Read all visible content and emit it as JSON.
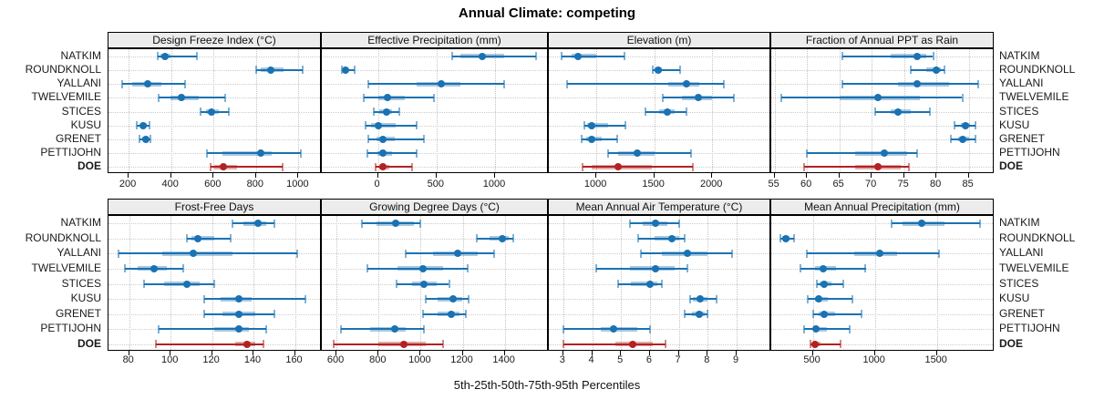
{
  "title": "Annual Climate: competing",
  "xlabel": "5th-25th-50th-75th-95th Percentiles",
  "sites": [
    "NATKIM",
    "ROUNDKNOLL",
    "YALLANI",
    "TWELVEMILE",
    "STICES",
    "KUSU",
    "GRENET",
    "PETTIJOHN",
    "DOE"
  ],
  "highlight_site": "DOE",
  "percentile_labels": [
    "5th",
    "25th",
    "50th",
    "75th",
    "95th"
  ],
  "colors": {
    "series_blue": "#1a72b2",
    "series_blue_band": "rgba(26,114,178,0.38)",
    "series_blue_cap": "rgba(26,114,178,0.55)",
    "highlight_red": "#b22222",
    "highlight_red_band": "rgba(178,34,34,0.38)",
    "highlight_red_cap": "rgba(178,34,34,0.55)",
    "strip_background": "#ececec",
    "grid": "#c9c9c9",
    "panel_border": "#000000"
  },
  "chart_data": {
    "type": "dotplot-intervals",
    "layout": "2 rows x 4 columns",
    "legend_position": "none",
    "grid": "dotted both axes",
    "note": "Each row shows 5th-25th-50th-75th-95th percentiles: whisker = 5th-95th, band = 25th-75th, dot = median",
    "panels": [
      {
        "title": "Design Freeze Index (°C)",
        "row": 0,
        "col": 0,
        "xlim": [
          105,
          1110
        ],
        "ticks": [
          200,
          400,
          600,
          800,
          1000
        ],
        "values": [
          [
            335,
            350,
            370,
            395,
            520
          ],
          [
            800,
            820,
            870,
            930,
            1020
          ],
          [
            170,
            215,
            290,
            355,
            465
          ],
          [
            340,
            395,
            450,
            530,
            655
          ],
          [
            540,
            565,
            590,
            625,
            670
          ],
          [
            240,
            255,
            270,
            285,
            300
          ],
          [
            250,
            265,
            280,
            292,
            303
          ],
          [
            570,
            640,
            820,
            875,
            1010
          ],
          [
            585,
            605,
            645,
            710,
            925
          ]
        ]
      },
      {
        "title": "Effective Precipitation (mm)",
        "row": 0,
        "col": 1,
        "xlim": [
          -480,
          1460
        ],
        "ticks": [
          0,
          500,
          1000
        ],
        "values": [
          [
            630,
            700,
            890,
            1080,
            1350
          ],
          [
            -310,
            -295,
            -280,
            -255,
            -200
          ],
          [
            -80,
            330,
            540,
            700,
            1080
          ],
          [
            -120,
            0,
            80,
            230,
            480
          ],
          [
            -40,
            10,
            70,
            120,
            185
          ],
          [
            -110,
            -60,
            5,
            150,
            330
          ],
          [
            -80,
            -10,
            40,
            140,
            390
          ],
          [
            -90,
            -5,
            45,
            120,
            330
          ],
          [
            -20,
            10,
            45,
            95,
            290
          ]
        ]
      },
      {
        "title": "Elevation (m)",
        "row": 0,
        "col": 2,
        "xlim": [
          590,
          2510
        ],
        "ticks": [
          1000,
          1500,
          2000
        ],
        "values": [
          [
            700,
            790,
            840,
            1000,
            1240
          ],
          [
            1490,
            1505,
            1530,
            1565,
            1725
          ],
          [
            750,
            1620,
            1775,
            1890,
            2100
          ],
          [
            1570,
            1740,
            1880,
            2000,
            2190
          ],
          [
            1420,
            1540,
            1615,
            1680,
            1780
          ],
          [
            900,
            920,
            960,
            1100,
            1250
          ],
          [
            870,
            910,
            960,
            1050,
            1180
          ],
          [
            1105,
            1190,
            1350,
            1500,
            1820
          ],
          [
            880,
            960,
            1185,
            1480,
            1830
          ]
        ]
      },
      {
        "title": "Fraction of Annual PPT as Rain",
        "row": 0,
        "col": 3,
        "xlim": [
          54.5,
          89
        ],
        "ticks": [
          55,
          60,
          65,
          70,
          75,
          80,
          85
        ],
        "values": [
          [
            65.5,
            73,
            77,
            78.5,
            79.5
          ],
          [
            76,
            78.5,
            80,
            80.7,
            81.2
          ],
          [
            65.5,
            74,
            77,
            82,
            86.5
          ],
          [
            56,
            65,
            71,
            77.5,
            84
          ],
          [
            70.5,
            73,
            74,
            76,
            79
          ],
          [
            82.8,
            83.8,
            84.5,
            85.2,
            86
          ],
          [
            82.3,
            83.3,
            84,
            85,
            86
          ],
          [
            60,
            67.5,
            72,
            75.5,
            77
          ],
          [
            59.5,
            67.5,
            71,
            74.5,
            75.8
          ]
        ]
      },
      {
        "title": "Frost-Free Days",
        "row": 1,
        "col": 0,
        "xlim": [
          70,
          173
        ],
        "ticks": [
          80,
          100,
          120,
          140,
          160
        ],
        "values": [
          [
            130,
            135,
            142,
            146,
            150
          ],
          [
            108,
            110,
            113,
            121,
            129
          ],
          [
            75,
            96,
            111,
            130,
            161
          ],
          [
            78,
            84,
            92,
            98,
            106
          ],
          [
            87,
            97,
            108,
            114,
            121
          ],
          [
            116,
            124,
            133,
            139,
            165
          ],
          [
            116,
            125,
            133,
            141,
            150
          ],
          [
            94,
            121,
            133,
            138,
            146
          ],
          [
            93,
            131,
            137,
            141,
            145
          ]
        ]
      },
      {
        "title": "Growing Degree Days (°C)",
        "row": 1,
        "col": 1,
        "xlim": [
          530,
          1610
        ],
        "ticks": [
          600,
          800,
          1000,
          1200,
          1400
        ],
        "values": [
          [
            720,
            790,
            880,
            970,
            1000
          ],
          [
            1265,
            1330,
            1390,
            1420,
            1440
          ],
          [
            930,
            1060,
            1175,
            1270,
            1350
          ],
          [
            745,
            890,
            1010,
            1105,
            1225
          ],
          [
            885,
            960,
            1015,
            1075,
            1135
          ],
          [
            1025,
            1080,
            1155,
            1200,
            1230
          ],
          [
            1010,
            1080,
            1145,
            1185,
            1215
          ],
          [
            620,
            760,
            875,
            930,
            1015
          ],
          [
            585,
            800,
            920,
            1025,
            1105
          ]
        ]
      },
      {
        "title": "Mean Annual Air Temperature (°C)",
        "row": 1,
        "col": 2,
        "xlim": [
          2.5,
          10.2
        ],
        "ticks": [
          3,
          4,
          5,
          6,
          7,
          8,
          9
        ],
        "values": [
          [
            5.3,
            5.75,
            6.2,
            6.6,
            7.0
          ],
          [
            5.6,
            6.15,
            6.75,
            7.0,
            7.2
          ],
          [
            5.7,
            6.4,
            7.3,
            8.0,
            8.85
          ],
          [
            4.15,
            5.3,
            6.2,
            6.85,
            7.3
          ],
          [
            4.9,
            5.35,
            6.0,
            6.25,
            6.4
          ],
          [
            7.4,
            7.5,
            7.75,
            8.0,
            8.3
          ],
          [
            7.2,
            7.45,
            7.7,
            7.9,
            8.0
          ],
          [
            3.0,
            4.3,
            4.75,
            5.55,
            6.0
          ],
          [
            3.0,
            4.8,
            5.4,
            6.1,
            6.55
          ]
        ]
      },
      {
        "title": "Mean Annual Precipitation (mm)",
        "row": 1,
        "col": 3,
        "xlim": [
          165,
          1965
        ],
        "ticks": [
          500,
          1000,
          1500
        ],
        "values": [
          [
            1135,
            1225,
            1375,
            1560,
            1845
          ],
          [
            240,
            255,
            280,
            310,
            350
          ],
          [
            450,
            830,
            1040,
            1180,
            1520
          ],
          [
            400,
            520,
            580,
            690,
            925
          ],
          [
            530,
            555,
            590,
            650,
            745
          ],
          [
            460,
            520,
            545,
            620,
            820
          ],
          [
            505,
            545,
            590,
            680,
            895
          ],
          [
            430,
            505,
            525,
            615,
            795
          ],
          [
            480,
            495,
            515,
            560,
            720
          ]
        ]
      }
    ]
  }
}
